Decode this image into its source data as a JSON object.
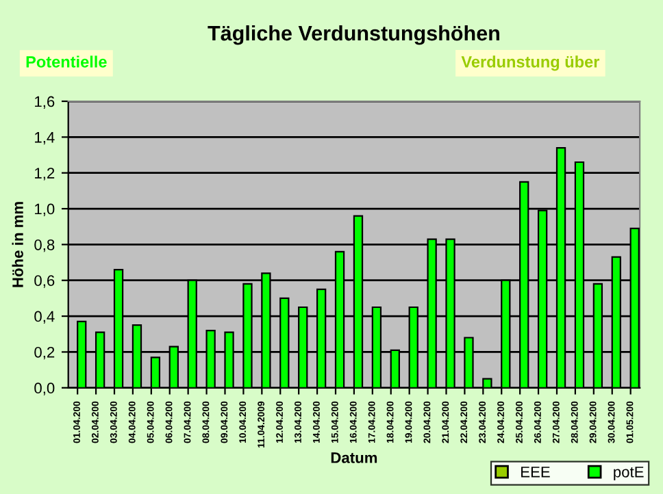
{
  "chart_data": {
    "type": "bar",
    "title": "Tägliche Verdunstungshöhen",
    "xlabel": "Datum",
    "ylabel": "Höhe in mm",
    "annotations": [
      "Potentielle",
      "Verdunstung über"
    ],
    "categories": [
      "01.04.200",
      "02.04.200",
      "03.04.200",
      "04.04.200",
      "05.04.200",
      "06.04.200",
      "07.04.200",
      "08.04.200",
      "09.04.200",
      "10.04.200",
      "11.04.2009",
      "12.04.200",
      "13.04.200",
      "14.04.200",
      "15.04.200",
      "16.04.200",
      "17.04.200",
      "18.04.200",
      "19.04.200",
      "20.04.200",
      "21.04.200",
      "22.04.200",
      "23.04.200",
      "24.04.200",
      "25.04.200",
      "26.04.200",
      "27.04.200",
      "28.04.200",
      "29.04.200",
      "30.04.200",
      "01.05.200"
    ],
    "series": [
      {
        "name": "EEE",
        "color": "#99cc00",
        "values": [
          null,
          null,
          null,
          null,
          null,
          null,
          null,
          null,
          null,
          null,
          null,
          null,
          null,
          null,
          null,
          null,
          null,
          null,
          null,
          null,
          null,
          null,
          null,
          null,
          null,
          null,
          null,
          null,
          null,
          null,
          null
        ]
      },
      {
        "name": "potE",
        "color": "#00ff00",
        "values": [
          0.37,
          0.31,
          0.66,
          0.35,
          0.17,
          0.23,
          0.6,
          0.32,
          0.31,
          0.58,
          0.64,
          0.5,
          0.45,
          0.55,
          0.76,
          0.96,
          0.45,
          0.21,
          0.45,
          0.83,
          0.83,
          0.28,
          0.05,
          0.6,
          1.15,
          0.99,
          1.34,
          1.26,
          0.58,
          0.73,
          0.89
        ]
      }
    ],
    "ylim": [
      0,
      1.6
    ],
    "yticks": [
      {
        "value": 0,
        "label": "0,0"
      },
      {
        "value": 0.2,
        "label": "0,2"
      },
      {
        "value": 0.4,
        "label": "0,4"
      },
      {
        "value": 0.6,
        "label": "0,6"
      },
      {
        "value": 0.8,
        "label": "0,8"
      },
      {
        "value": 1.0,
        "label": "1,0"
      },
      {
        "value": 1.2,
        "label": "1,2"
      },
      {
        "value": 1.4,
        "label": "1,4"
      },
      {
        "value": 1.6,
        "label": "1,6"
      }
    ],
    "grid": "y",
    "legend": "bottom right"
  }
}
